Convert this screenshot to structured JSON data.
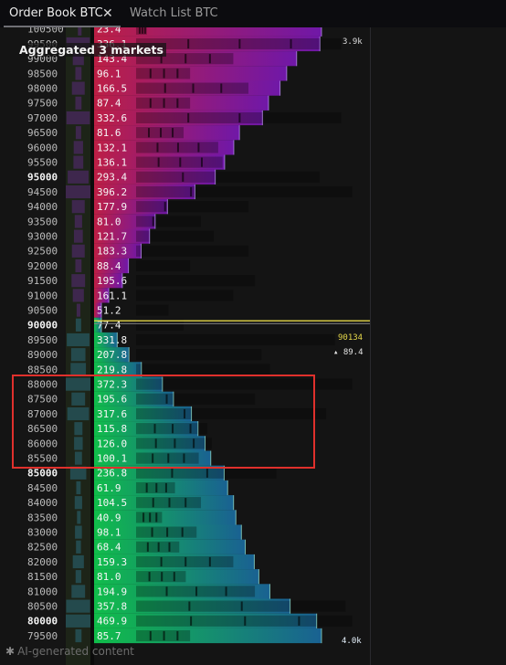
{
  "tabs": [
    {
      "label": "Order Book BTC",
      "active": true,
      "close_icon": "✕"
    },
    {
      "label": "Watch List BTC",
      "active": false
    }
  ],
  "header": {
    "aggregation": "Aggregated 3 markets"
  },
  "markers": {
    "last_price": "90134",
    "last_price_delta": "▴ 89.4",
    "top_cumulative": "3.9k",
    "bottom_cumulative": "4.0k"
  },
  "footer": {
    "icon": "sparkle-icon",
    "text": "AI-generated content"
  },
  "colors": {
    "ask_low": "#d0204a",
    "ask_high": "#7a18b8",
    "bid_low": "#10d050",
    "bid_high": "#1a6aa0",
    "last_line": "#e6d84a",
    "highlight": "#e0302c"
  },
  "levels": [
    {
      "price": "100500",
      "size": "23.4",
      "side": "ask",
      "partial": true,
      "major": false,
      "ext": 0.05
    },
    {
      "price": "99500",
      "size": "336.1",
      "side": "ask",
      "major": false,
      "ext": 0.95
    },
    {
      "price": "99000",
      "size": "143.4",
      "side": "ask",
      "major": false,
      "ext": 0.45
    },
    {
      "price": "98500",
      "size": "96.1",
      "side": "ask",
      "major": false,
      "ext": 0.25
    },
    {
      "price": "98000",
      "size": "166.5",
      "side": "ask",
      "major": false,
      "ext": 0.52
    },
    {
      "price": "97500",
      "size": "87.4",
      "side": "ask",
      "major": false,
      "ext": 0.25
    },
    {
      "price": "97000",
      "size": "332.6",
      "side": "ask",
      "major": false,
      "ext": 0.95
    },
    {
      "price": "96500",
      "size": "81.6",
      "side": "ask",
      "major": false,
      "ext": 0.22
    },
    {
      "price": "96000",
      "size": "132.1",
      "side": "ask",
      "major": false,
      "ext": 0.38
    },
    {
      "price": "95500",
      "size": "136.1",
      "side": "ask",
      "major": false,
      "ext": 0.4
    },
    {
      "price": "95000",
      "size": "293.4",
      "side": "ask",
      "major": true,
      "ext": 0.85
    },
    {
      "price": "94500",
      "size": "396.2",
      "side": "ask",
      "major": false,
      "ext": 1.0
    },
    {
      "price": "94000",
      "size": "177.9",
      "side": "ask",
      "major": false,
      "ext": 0.52
    },
    {
      "price": "93500",
      "size": "81.0",
      "side": "ask",
      "major": false,
      "ext": 0.3
    },
    {
      "price": "93000",
      "size": "121.7",
      "side": "ask",
      "major": false,
      "ext": 0.36
    },
    {
      "price": "92500",
      "size": "183.3",
      "side": "ask",
      "major": false,
      "ext": 0.52
    },
    {
      "price": "92000",
      "size": "88.4",
      "side": "ask",
      "major": false,
      "ext": 0.25
    },
    {
      "price": "91500",
      "size": "195.6",
      "side": "ask",
      "major": false,
      "ext": 0.55
    },
    {
      "price": "91000",
      "size": "161.1",
      "side": "ask",
      "major": false,
      "ext": 0.45
    },
    {
      "price": "90500",
      "size": "51.2",
      "side": "ask",
      "major": false,
      "ext": 0.15
    },
    {
      "price": "90000",
      "size": "77.4",
      "side": "bid",
      "major": true,
      "ext": 0.22
    },
    {
      "price": "89500",
      "size": "331.8",
      "side": "bid",
      "major": false,
      "ext": 0.92
    },
    {
      "price": "89000",
      "size": "207.8",
      "side": "bid",
      "major": false,
      "ext": 0.58
    },
    {
      "price": "88500",
      "size": "219.8",
      "side": "bid",
      "major": false,
      "ext": 0.62
    },
    {
      "price": "88000",
      "size": "372.3",
      "side": "bid",
      "major": false,
      "ext": 1.0
    },
    {
      "price": "87500",
      "size": "195.6",
      "side": "bid",
      "major": false,
      "ext": 0.55
    },
    {
      "price": "87000",
      "size": "317.6",
      "side": "bid",
      "major": false,
      "ext": 0.88
    },
    {
      "price": "86500",
      "size": "115.8",
      "side": "bid",
      "major": false,
      "ext": 0.33
    },
    {
      "price": "86000",
      "size": "126.0",
      "side": "bid",
      "major": false,
      "ext": 0.35
    },
    {
      "price": "85500",
      "size": "100.1",
      "side": "bid",
      "major": false,
      "ext": 0.29
    },
    {
      "price": "85000",
      "size": "236.8",
      "side": "bid",
      "major": true,
      "ext": 0.65
    },
    {
      "price": "84500",
      "size": "61.9",
      "side": "bid",
      "major": false,
      "ext": 0.18
    },
    {
      "price": "84000",
      "size": "104.5",
      "side": "bid",
      "major": false,
      "ext": 0.3
    },
    {
      "price": "83500",
      "size": "40.9",
      "side": "bid",
      "major": false,
      "ext": 0.12
    },
    {
      "price": "83000",
      "size": "98.1",
      "side": "bid",
      "major": false,
      "ext": 0.28
    },
    {
      "price": "82500",
      "size": "68.4",
      "side": "bid",
      "major": false,
      "ext": 0.2
    },
    {
      "price": "82000",
      "size": "159.3",
      "side": "bid",
      "major": false,
      "ext": 0.45
    },
    {
      "price": "81500",
      "size": "81.0",
      "side": "bid",
      "major": false,
      "ext": 0.23
    },
    {
      "price": "81000",
      "size": "194.9",
      "side": "bid",
      "major": false,
      "ext": 0.55
    },
    {
      "price": "80500",
      "size": "357.8",
      "side": "bid",
      "major": false,
      "ext": 0.97
    },
    {
      "price": "80000",
      "size": "469.9",
      "side": "bid",
      "major": true,
      "ext": 1.0
    },
    {
      "price": "79500",
      "size": "85.7",
      "side": "bid",
      "partial": true,
      "major": false,
      "ext": 0.25
    }
  ]
}
